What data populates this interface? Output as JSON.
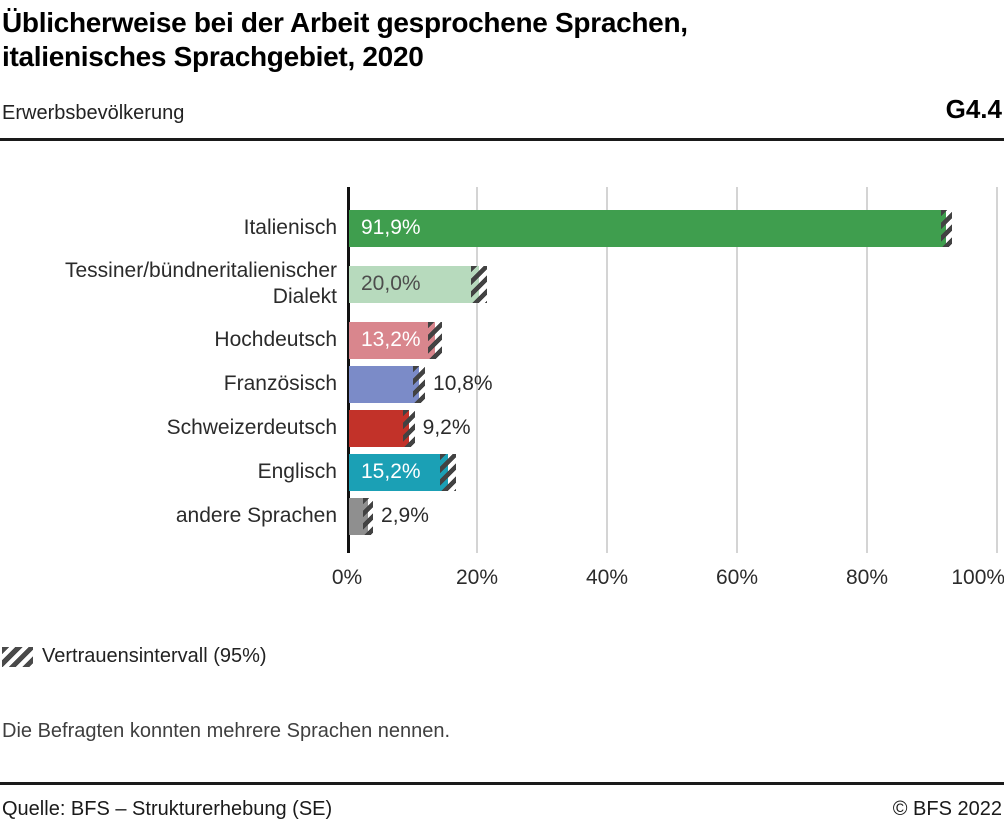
{
  "header": {
    "title": "Üblicherweise bei der Arbeit gesprochene Sprachen,\nitalienisches Sprachgebiet, 2020",
    "subtitle": "Erwerbsbevölkerung",
    "figure_code": "G4.4"
  },
  "chart_data": {
    "type": "bar",
    "orientation": "horizontal",
    "unit": "%",
    "title": "Üblicherweise bei der Arbeit gesprochene Sprachen, italienisches Sprachgebiet, 2020",
    "xlabel": "",
    "ylabel": "",
    "xlim": [
      0,
      100
    ],
    "grid": true,
    "x_ticks": [
      "0%",
      "20%",
      "40%",
      "60%",
      "80%",
      "100%"
    ],
    "rows": [
      {
        "label": "Italienisch",
        "value": 91.9,
        "value_label": "91,9%",
        "color": "#3F9E4E",
        "value_inside": true,
        "value_label_color": "#ffffff",
        "ci": 0.9
      },
      {
        "label": "Tessiner/bündneritalienischer\nDialekt",
        "value": 20.0,
        "value_label": "20,0%",
        "color": "#B7DABD",
        "value_inside": true,
        "value_label_color": "#4d4d4d",
        "ci": 1.2
      },
      {
        "label": "Hochdeutsch",
        "value": 13.2,
        "value_label": "13,2%",
        "color": "#D9868D",
        "value_inside": true,
        "value_label_color": "#ffffff",
        "ci": 1.1
      },
      {
        "label": "Französisch",
        "value": 10.8,
        "value_label": "10,8%",
        "color": "#7B8BC8",
        "value_inside": false,
        "value_label_color": "#2b2b2b",
        "ci": 0.9
      },
      {
        "label": "Schweizerdeutsch",
        "value": 9.2,
        "value_label": "9,2%",
        "color": "#C23229",
        "value_inside": false,
        "value_label_color": "#2b2b2b",
        "ci": 0.9
      },
      {
        "label": "Englisch",
        "value": 15.2,
        "value_label": "15,2%",
        "color": "#1BA0B5",
        "value_inside": true,
        "value_label_color": "#ffffff",
        "ci": 1.2
      },
      {
        "label": "andere Sprachen",
        "value": 2.9,
        "value_label": "2,9%",
        "color": "#8F8F8F",
        "value_inside": false,
        "value_label_color": "#2b2b2b",
        "ci": 0.8
      }
    ],
    "legend": {
      "hatch_label": "Vertrauensintervall (95%)"
    },
    "legend_position": "bottom-left"
  },
  "notes": {
    "footnote": "Die Befragten konnten mehrere Sprachen nennen."
  },
  "footer": {
    "source": "Quelle: BFS – Strukturerhebung (SE)",
    "copyright": "© BFS 2022"
  }
}
